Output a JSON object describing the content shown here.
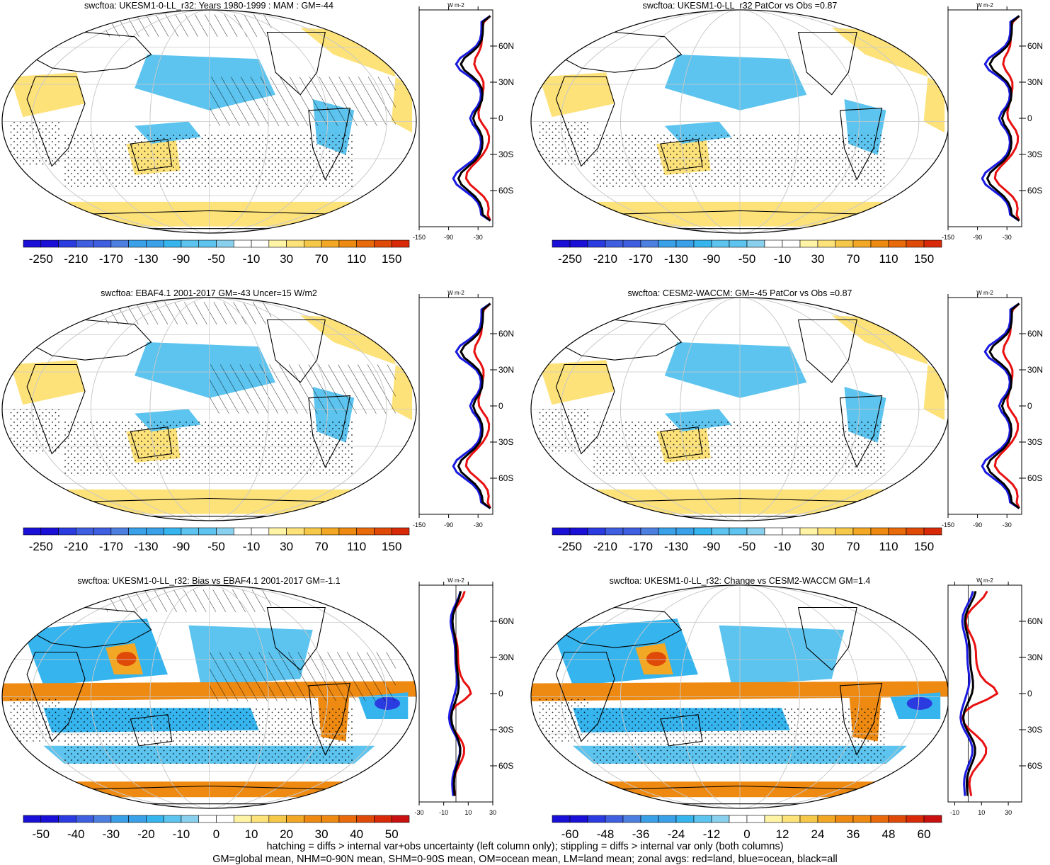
{
  "chart_data": [
    {
      "type": "map",
      "title": "swcftoa: UKESM1-0-LL_r32: Years 1980-1999 : MAM : GM=-44",
      "colorbar": {
        "labels": [
          "-250",
          "-210",
          "-170",
          "-130",
          "-90",
          "-50",
          "-10",
          "30",
          "70",
          "110",
          "150"
        ],
        "min": -270,
        "max": 170,
        "step": 20
      },
      "profile": {
        "unit": "W m-2",
        "xticks": [
          "-150",
          "-90",
          "-30"
        ],
        "xlim": [
          -150,
          0
        ],
        "yticks": [
          "60N",
          "30N",
          "0",
          "30S",
          "60S"
        ]
      }
    },
    {
      "type": "map",
      "title": "swcftoa: UKESM1-0-LL_r32 PatCor vs Obs =0.87",
      "colorbar": {
        "labels": [
          "-250",
          "-210",
          "-170",
          "-130",
          "-90",
          "-50",
          "-10",
          "30",
          "70",
          "110",
          "150"
        ],
        "min": -270,
        "max": 170,
        "step": 20
      },
      "profile": {
        "unit": "W m-2",
        "xticks": [
          "-150",
          "-90",
          "-30"
        ],
        "xlim": [
          -150,
          0
        ],
        "yticks": [
          "60N",
          "30N",
          "0",
          "30S",
          "60S"
        ]
      }
    },
    {
      "type": "map",
      "title": "swcftoa: EBAF4.1 2001-2017 GM=-43 Uncer=15 W/m2",
      "colorbar": {
        "labels": [
          "-250",
          "-210",
          "-170",
          "-130",
          "-90",
          "-50",
          "-10",
          "30",
          "70",
          "110",
          "150"
        ],
        "min": -270,
        "max": 170,
        "step": 20
      },
      "profile": {
        "unit": "W m-2",
        "xticks": [
          "-150",
          "-90",
          "-30"
        ],
        "xlim": [
          -150,
          0
        ],
        "yticks": [
          "60N",
          "30N",
          "0",
          "30S",
          "60S"
        ]
      }
    },
    {
      "type": "map",
      "title": "swcftoa: CESM2-WACCM: GM=-45 PatCor vs Obs =0.87",
      "colorbar": {
        "labels": [
          "-250",
          "-210",
          "-170",
          "-130",
          "-90",
          "-50",
          "-10",
          "30",
          "70",
          "110",
          "150"
        ],
        "min": -270,
        "max": 170,
        "step": 20
      },
      "profile": {
        "unit": "W m-2",
        "xticks": [
          "-150",
          "-90",
          "-30"
        ],
        "xlim": [
          -150,
          0
        ],
        "yticks": [
          "60N",
          "30N",
          "0",
          "30S",
          "60S"
        ]
      }
    },
    {
      "type": "map",
      "title": "swcftoa: UKESM1-0-LL_r32: Bias vs EBAF4.1 2001-2017 GM=-1.1",
      "colorbar": {
        "labels": [
          "-50",
          "-40",
          "-30",
          "-20",
          "-10",
          "0",
          "10",
          "20",
          "30",
          "40",
          "50"
        ],
        "min": -55,
        "max": 55,
        "step": 5
      },
      "profile": {
        "unit": "W m-2",
        "xticks": [
          "-30",
          "-10",
          "10",
          "30"
        ],
        "xlim": [
          -30,
          30
        ],
        "yticks": [
          "60N",
          "30N",
          "0",
          "30S",
          "60S"
        ]
      }
    },
    {
      "type": "map",
      "title": "swcftoa: UKESM1-0-LL_r32: Change vs CESM2-WACCM GM=1.4",
      "colorbar": {
        "labels": [
          "-60",
          "-48",
          "-36",
          "-24",
          "-12",
          "0",
          "12",
          "24",
          "36",
          "48",
          "60"
        ],
        "min": -66,
        "max": 66,
        "step": 6
      },
      "profile": {
        "unit": "W m-2",
        "xticks": [
          "-10",
          "10",
          "30"
        ],
        "xlim": [
          -15,
          40
        ],
        "yticks": [
          "60N",
          "30N",
          "0",
          "30S",
          "60S"
        ]
      }
    }
  ],
  "footer": {
    "line1": "hatching = diffs > internal var+obs uncertainty (left column only); stippling = diffs > internal var only (both columns)",
    "line2": "GM=global mean, NHM=0-90N mean, SHM=0-90S mean, OM=ocean mean, LM=land mean; zonal avgs: red=land, blue=ocean, black=all"
  },
  "colors": {
    "negative_scale": [
      "#1a0fd6",
      "#2a3be0",
      "#3f5fe0",
      "#4d7fe0",
      "#3aa0e8",
      "#36b4ee",
      "#5cc4ef",
      "#88d0ee",
      "#b0def0"
    ],
    "positive_scale": [
      "#fff3a6",
      "#fde27a",
      "#f6c84a",
      "#f2a824",
      "#ee8a12",
      "#e86a0a",
      "#e04a08",
      "#d82a08",
      "#c81010"
    ],
    "zonal_land": "#e81010",
    "zonal_ocean": "#1a1ae0",
    "zonal_all": "#000000"
  }
}
